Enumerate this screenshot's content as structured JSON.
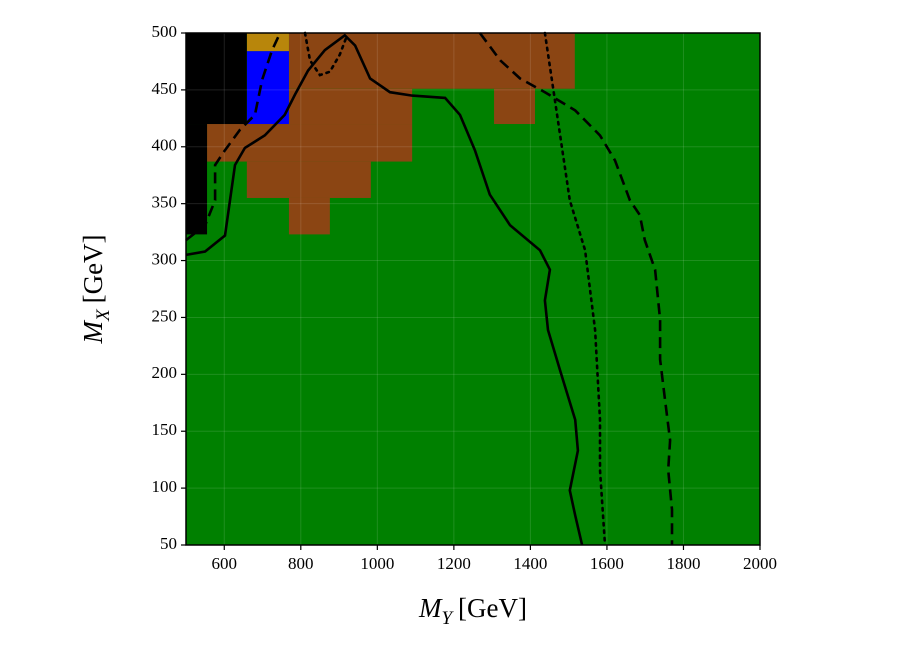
{
  "chart_data": {
    "type": "region_map",
    "xlabel": {
      "symbol": "M",
      "subscript": "Y",
      "unit": "[GeV]"
    },
    "ylabel": {
      "symbol": "M",
      "subscript": "X",
      "unit": "[GeV]"
    },
    "xlim": [
      500,
      2000
    ],
    "ylim": [
      50,
      500
    ],
    "xticks": [
      600,
      800,
      1000,
      1200,
      1400,
      1600,
      1800,
      2000
    ],
    "yticks": [
      50,
      100,
      150,
      200,
      250,
      300,
      350,
      400,
      450,
      500
    ],
    "grid": true,
    "regions": [
      {
        "color": "#008000",
        "x": [
          500,
          2000
        ],
        "y": [
          50,
          500
        ]
      },
      {
        "color": "#8b4513",
        "x": [
          769,
          1516
        ],
        "y": [
          451,
          500
        ]
      },
      {
        "color": "#8b4513",
        "x": [
          769,
          1091
        ],
        "y": [
          420,
          451
        ]
      },
      {
        "color": "#8b4513",
        "x": [
          1305,
          1412
        ],
        "y": [
          420,
          451
        ]
      },
      {
        "color": "#8b4513",
        "x": [
          555,
          1091
        ],
        "y": [
          387,
          420
        ]
      },
      {
        "color": "#8b4513",
        "x": [
          659,
          983
        ],
        "y": [
          355,
          387
        ]
      },
      {
        "color": "#8b4513",
        "x": [
          769,
          876
        ],
        "y": [
          323,
          355
        ]
      },
      {
        "color": "#b8860b",
        "x": [
          659,
          769
        ],
        "y": [
          484,
          500
        ]
      },
      {
        "color": "#0000ff",
        "x": [
          659,
          769
        ],
        "y": [
          420,
          484
        ]
      },
      {
        "color": "#000000",
        "x": [
          500,
          659
        ],
        "y": [
          420,
          500
        ]
      },
      {
        "color": "#000000",
        "x": [
          500,
          555
        ],
        "y": [
          323,
          420
        ]
      }
    ],
    "series": [
      {
        "style": "solid",
        "color": "#000000",
        "x": [
          500,
          550,
          602,
          615,
          628,
          654,
          706,
          758,
          785,
          819,
          863,
          915,
          942,
          981,
          1033,
          1091,
          1177,
          1216,
          1255,
          1294,
          1347,
          1425,
          1451,
          1438,
          1446,
          1477,
          1517,
          1524,
          1503,
          1517,
          1535
        ],
        "values": [
          305,
          308,
          322,
          353,
          384,
          399,
          410,
          428,
          446,
          467,
          485,
          498,
          489,
          460,
          448,
          445,
          443,
          428,
          397,
          358,
          331,
          309,
          292,
          265,
          239,
          204,
          160,
          133,
          98,
          76,
          50
        ]
      },
      {
        "style": "dashed",
        "color": "#000000",
        "x": [
          500,
          550,
          576,
          576,
          602,
          641,
          680,
          699,
          725,
          746,
          null,
          1268,
          1321,
          1373,
          1438,
          1517,
          1582,
          1621,
          1660,
          1686,
          1699,
          1726,
          1739,
          1739,
          1752,
          1765,
          1760,
          1770,
          1770
        ],
        "values": [
          318,
          331,
          353,
          384,
          397,
          415,
          428,
          459,
          485,
          500,
          null,
          500,
          476,
          460,
          448,
          432,
          410,
          388,
          353,
          340,
          318,
          292,
          248,
          213,
          177,
          142,
          116,
          81,
          50
        ]
      },
      {
        "style": "dotted",
        "color": "#000000",
        "x": [
          811,
          824,
          850,
          876,
          902,
          921,
          null,
          1438,
          1464,
          1503,
          1543,
          1569,
          1582,
          1582,
          1595
        ],
        "values": [
          500,
          476,
          463,
          466,
          481,
          498,
          null,
          500,
          441,
          353,
          309,
          239,
          160,
          116,
          50
        ]
      }
    ]
  }
}
